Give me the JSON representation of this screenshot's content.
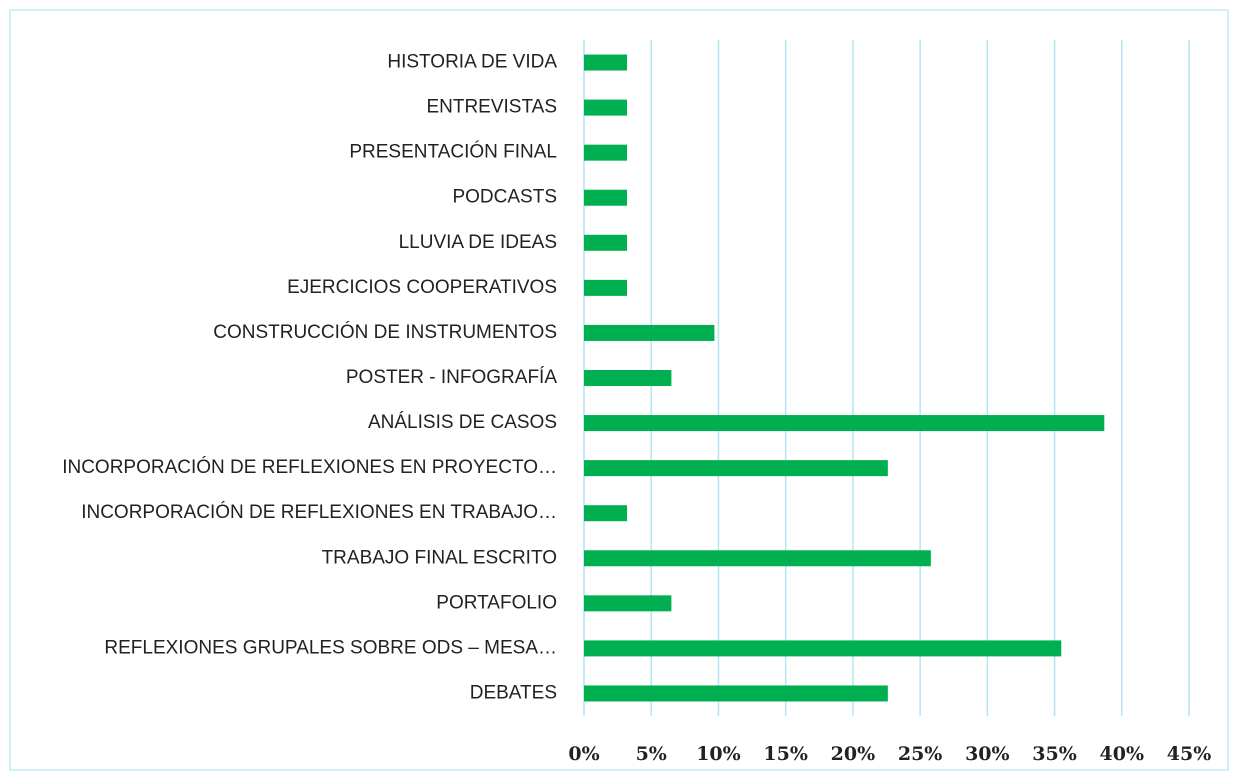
{
  "chart_data": {
    "type": "barh",
    "categories": [
      "HISTORIA DE VIDA",
      "ENTREVISTAS ",
      "PRESENTACIÓN FINAL",
      "PODCASTS",
      "LLUVIA DE IDEAS",
      "EJERCICIOS COOPERATIVOS ",
      "CONSTRUCCIÓN DE INSTRUMENTOS",
      "POSTER - INFOGRAFÍA",
      "ANÁLISIS DE CASOS",
      "INCORPORACIÓN DE REFLEXIONES EN PROYECTO…",
      "INCORPORACIÓN DE REFLEXIONES EN TRABAJO…",
      "TRABAJO FINAL ESCRITO ",
      "PORTAFOLIO",
      "REFLEXIONES GRUPALES SOBRE ODS – MESA…",
      "DEBATES "
    ],
    "values": [
      3.2,
      3.2,
      3.2,
      3.2,
      3.2,
      3.2,
      9.7,
      6.5,
      38.7,
      22.6,
      3.2,
      25.8,
      6.5,
      35.5,
      22.6
    ],
    "color": "#00b050",
    "xlim": [
      0,
      45
    ],
    "xticks": [
      {
        "value": 0,
        "label": "0%"
      },
      {
        "value": 5,
        "label": "5%"
      },
      {
        "value": 10,
        "label": "10%"
      },
      {
        "value": 15,
        "label": "15%"
      },
      {
        "value": 20,
        "label": "20%"
      },
      {
        "value": 25,
        "label": "25%"
      },
      {
        "value": 30,
        "label": "30%"
      },
      {
        "value": 35,
        "label": "35%"
      },
      {
        "value": 40,
        "label": "40%"
      },
      {
        "value": 45,
        "label": "45%"
      }
    ],
    "grid": true
  }
}
